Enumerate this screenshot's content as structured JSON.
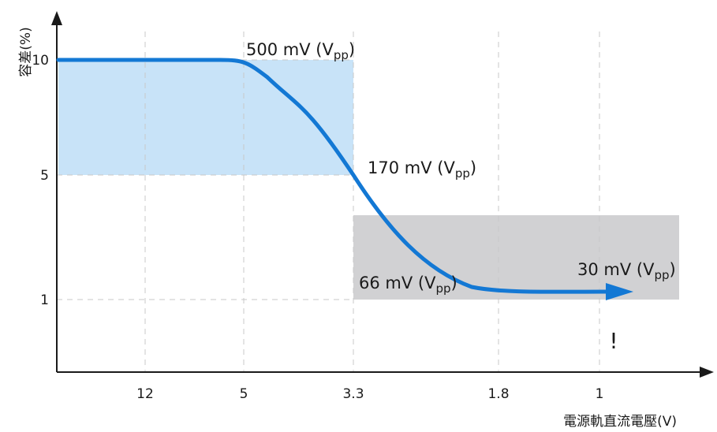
{
  "chart_data": {
    "type": "line",
    "title": "",
    "xlabel": "電源軌直流電壓(V)",
    "ylabel": "容差(%)",
    "x_tick_labels": [
      "12",
      "5",
      "3.3",
      "1.8",
      "1"
    ],
    "y_tick_labels": [
      "10",
      "5",
      "1"
    ],
    "grid": "dashed",
    "series": [
      {
        "x": [
          "5",
          "3.3",
          "1"
        ],
        "y": [
          10,
          5,
          1.2
        ]
      }
    ],
    "regions": [
      {
        "color": "#c8e3f8",
        "x_range": [
          "start",
          "3.3"
        ],
        "y_range": [
          5,
          10
        ]
      },
      {
        "color": "#d1d1d3",
        "x_range": [
          "3.3",
          "end"
        ],
        "y_range": [
          1,
          3.5
        ]
      }
    ],
    "annotations": [
      {
        "main": "500 mV (V",
        "sub": "pp",
        "close": ")"
      },
      {
        "main": "170 mV (V",
        "sub": "pp",
        "close": ")"
      },
      {
        "main": "66 mV (V",
        "sub": "pp",
        "close": ")"
      },
      {
        "main": "30 mV (V",
        "sub": "pp",
        "close": ")"
      }
    ],
    "warning_mark": "!",
    "colors": {
      "curve": "#1378d4",
      "blue_region": "#c8e3f8",
      "gray_region": "#d1d1d3",
      "grid": "#c8c8c8",
      "axis": "#1a1a1a"
    }
  }
}
